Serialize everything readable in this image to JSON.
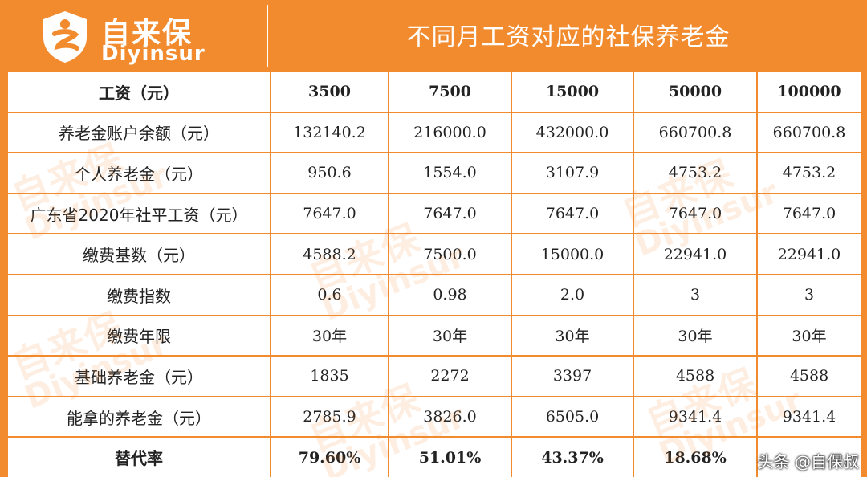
{
  "header": {
    "logo_cn": "自来保",
    "logo_en": "Diyinsur",
    "title": "不同月工资对应的社保养老金"
  },
  "table": {
    "header": [
      "工资（元）",
      "3500",
      "7500",
      "15000",
      "50000",
      "100000"
    ],
    "rows": [
      [
        "养老金账户余额（元）",
        "132140.2",
        "216000.0",
        "432000.0",
        "660700.8",
        "660700.8"
      ],
      [
        "个人养老金（元）",
        "950.6",
        "1554.0",
        "3107.9",
        "4753.2",
        "4753.2"
      ],
      [
        "广东省2020年社平工资（元）",
        "7647.0",
        "7647.0",
        "7647.0",
        "7647.0",
        "7647.0"
      ],
      [
        "缴费基数（元）",
        "4588.2",
        "7500.0",
        "15000.0",
        "22941.0",
        "22941.0"
      ],
      [
        "缴费指数",
        "0.6",
        "0.98",
        "2.0",
        "3",
        "3"
      ],
      [
        "缴费年限",
        "30年",
        "30年",
        "30年",
        "30年",
        "30年"
      ],
      [
        "基础养老金（元）",
        "1835",
        "2272",
        "3397",
        "4588",
        "4588"
      ],
      [
        "能拿的养老金（元）",
        "2785.9",
        "3826.0",
        "6505.0",
        "9341.4",
        "9341.4"
      ]
    ],
    "footer": [
      "替代率",
      "79.60%",
      "51.01%",
      "43.37%",
      "18.68%",
      ""
    ]
  },
  "watermark": {
    "cn": "自来保",
    "en": "Diyinsur"
  },
  "credit": "头条 @自保叔",
  "colors": {
    "brand_orange": "#f28a2e",
    "text": "#222222"
  }
}
